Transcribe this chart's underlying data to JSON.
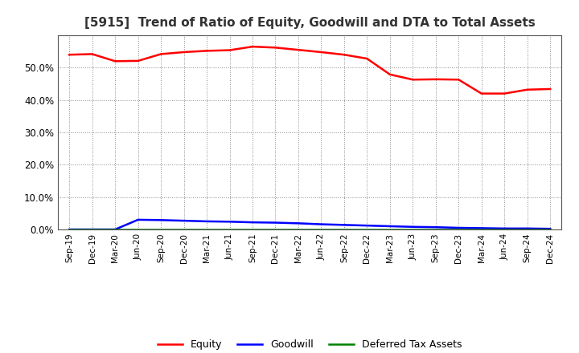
{
  "title": "[5915]  Trend of Ratio of Equity, Goodwill and DTA to Total Assets",
  "x_labels": [
    "Sep-19",
    "Dec-19",
    "Mar-20",
    "Jun-20",
    "Sep-20",
    "Dec-20",
    "Mar-21",
    "Jun-21",
    "Sep-21",
    "Dec-21",
    "Mar-22",
    "Jun-22",
    "Sep-22",
    "Dec-22",
    "Mar-23",
    "Jun-23",
    "Sep-23",
    "Dec-23",
    "Mar-24",
    "Jun-24",
    "Sep-24",
    "Dec-24"
  ],
  "equity": [
    0.54,
    0.542,
    0.52,
    0.521,
    0.542,
    0.548,
    0.552,
    0.554,
    0.565,
    0.562,
    0.555,
    0.548,
    0.54,
    0.528,
    0.479,
    0.463,
    0.464,
    0.463,
    0.42,
    0.42,
    0.432,
    0.434
  ],
  "goodwill": [
    0.0,
    0.0,
    0.0,
    0.03,
    0.029,
    0.027,
    0.025,
    0.024,
    0.022,
    0.021,
    0.019,
    0.016,
    0.014,
    0.012,
    0.01,
    0.008,
    0.007,
    0.005,
    0.004,
    0.003,
    0.003,
    0.002
  ],
  "dta": [
    0.0,
    0.0,
    0.0,
    0.0,
    0.0,
    0.0,
    0.0,
    0.0,
    0.0,
    0.0,
    0.0,
    0.0,
    0.0,
    0.0,
    0.0,
    0.0,
    0.0,
    0.0,
    0.0,
    0.0,
    0.0,
    0.0
  ],
  "equity_color": "#FF0000",
  "goodwill_color": "#0000FF",
  "dta_color": "#008000",
  "ylim": [
    0.0,
    0.6
  ],
  "yticks": [
    0.0,
    0.1,
    0.2,
    0.3,
    0.4,
    0.5
  ],
  "bg_color": "#FFFFFF",
  "plot_bg_color": "#FFFFFF",
  "grid_color": "#888888",
  "title_fontsize": 11,
  "legend_labels": [
    "Equity",
    "Goodwill",
    "Deferred Tax Assets"
  ]
}
